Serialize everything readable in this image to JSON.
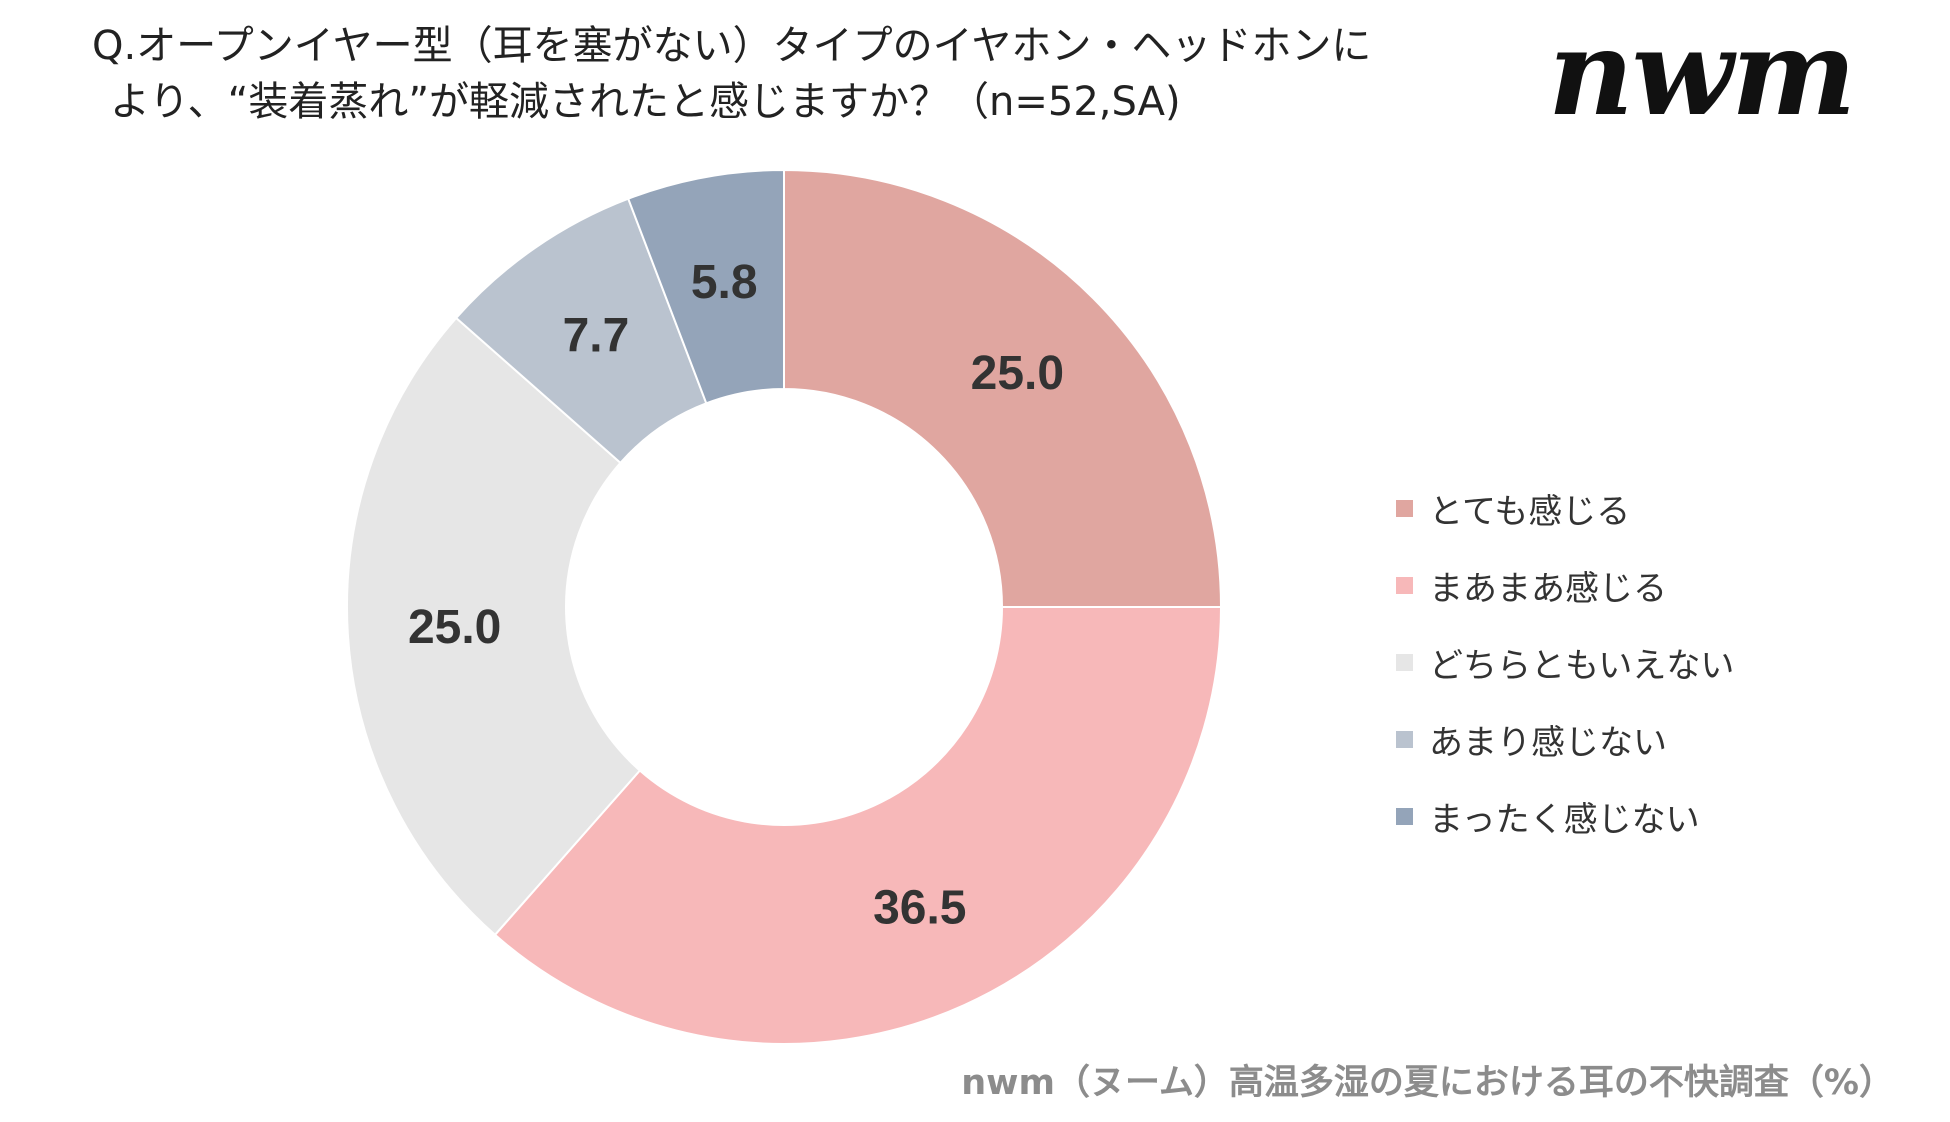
{
  "question": {
    "line1": "Q.オープンイヤー型（耳を塞がない）タイプのイヤホン・ヘッドホンに",
    "line2": "より、“装着蒸れ”が軽減されたと感じますか？（n=52,SA)"
  },
  "logo_text": "nwm",
  "source": "nwm（ヌーム）高温多湿の夏における耳の不快調査（%）",
  "chart_data": {
    "type": "pie",
    "variant": "donut",
    "title": "Q.オープンイヤー型（耳を塞がない）タイプのイヤホン・ヘッドホンにより、“装着蒸れ”が軽減されたと感じますか？（n=52,SA)",
    "unit": "%",
    "legend_position": "right",
    "start": "top, clockwise",
    "categories": [
      "とても感じる",
      "まあまあ感じる",
      "どちらともいえない",
      "あまり感じない",
      "まったく感じない"
    ],
    "values": [
      25.0,
      36.5,
      25.0,
      7.7,
      5.8
    ],
    "value_labels": [
      "25.0",
      "36.5",
      "25.0",
      "7.7",
      "5.8"
    ],
    "colors": [
      "#e0a6a0",
      "#f7b8b9",
      "#e6e6e6",
      "#bac3cf",
      "#94a4b9"
    ]
  }
}
